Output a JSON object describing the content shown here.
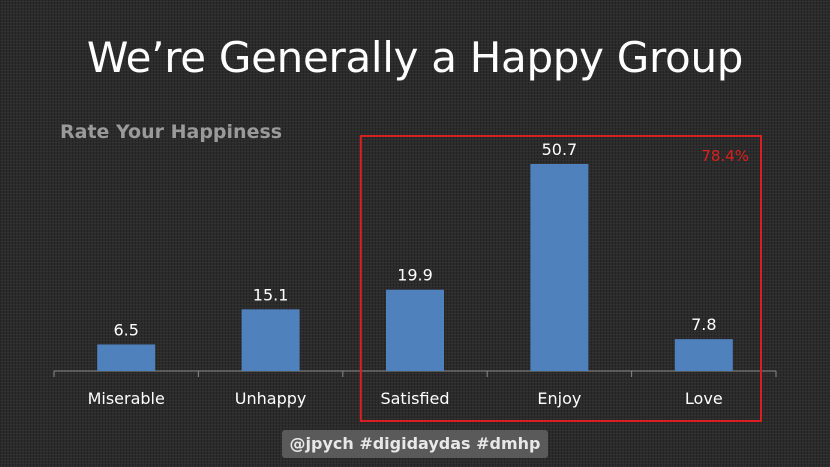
{
  "slide": {
    "title": "We’re Generally a Happy Group",
    "footer": "@jpych #digidaydas #dmhp"
  },
  "colors": {
    "bar": "#4f81bd",
    "highlight_box": "#d92020",
    "highlight_text": "#d92020",
    "axis": "#8a8a8a",
    "label_text": "#ffffff",
    "chart_title": "#9a9a9a"
  },
  "chart_data": {
    "type": "bar",
    "title": "Rate Your Happiness",
    "categories": [
      "Miserable",
      "Unhappy",
      "Satisfied",
      "Enjoy",
      "Love"
    ],
    "values": [
      6.5,
      15.1,
      19.9,
      50.7,
      7.8
    ],
    "data_labels": [
      "6.5",
      "15.1",
      "19.9",
      "50.7",
      "7.8"
    ],
    "xlabel": "",
    "ylabel": "",
    "ylim": [
      0,
      60
    ],
    "grid": false,
    "legend": "none",
    "annotation": {
      "text": "78.4%",
      "highlighted_categories": [
        "Satisfied",
        "Enjoy",
        "Love"
      ]
    }
  }
}
